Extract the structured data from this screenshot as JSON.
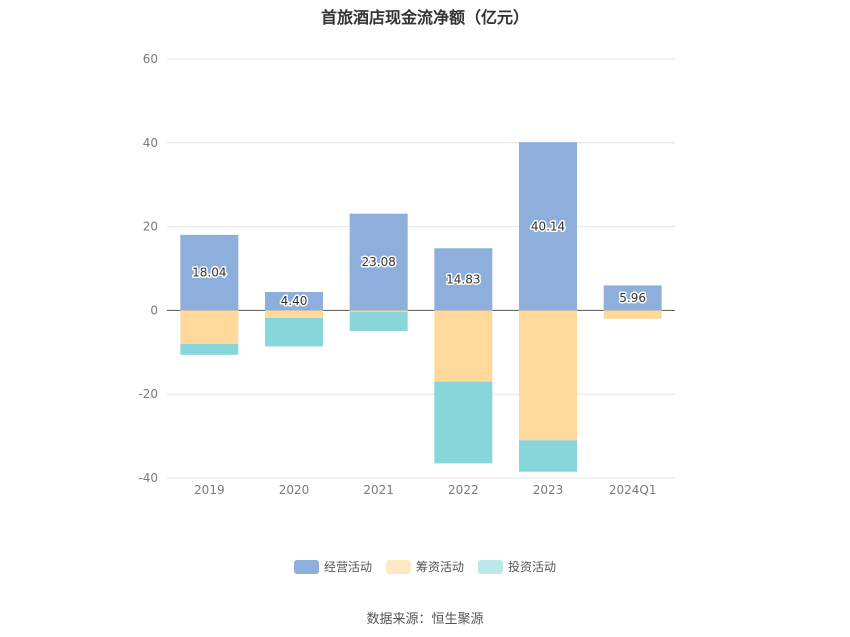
{
  "chart_data": {
    "type": "bar",
    "stacked": true,
    "title": "首旅酒店现金流净额（亿元）",
    "categories": [
      "2019",
      "2020",
      "2021",
      "2022",
      "2023",
      "2024Q1"
    ],
    "series": [
      {
        "name": "经营活动",
        "color": "#8eaedb",
        "values": [
          18.04,
          4.4,
          23.08,
          14.83,
          40.14,
          5.96
        ],
        "labels": [
          "18.04",
          "4.40",
          "23.08",
          "14.83",
          "40.14",
          "5.96"
        ]
      },
      {
        "name": "筹资活动",
        "color": "#ffd89b",
        "values": [
          -8.0,
          -1.8,
          -0.3,
          -17.0,
          -31.0,
          -2.0
        ]
      },
      {
        "name": "投资活动",
        "color": "#88d5da",
        "values": [
          -2.6,
          -6.8,
          -4.6,
          -19.5,
          -7.5,
          0
        ]
      }
    ],
    "yticks": [
      60,
      40,
      20,
      0,
      -20,
      -40
    ],
    "ylim": [
      -40,
      60
    ],
    "grid": true,
    "legend_position": "bottom"
  },
  "legend": [
    {
      "label": "经营活动",
      "color": "#8eaedb"
    },
    {
      "label": "筹资活动",
      "color": "#ffe8c2"
    },
    {
      "label": "投资活动",
      "color": "#bde8ea"
    }
  ],
  "source": "数据来源：恒生聚源"
}
